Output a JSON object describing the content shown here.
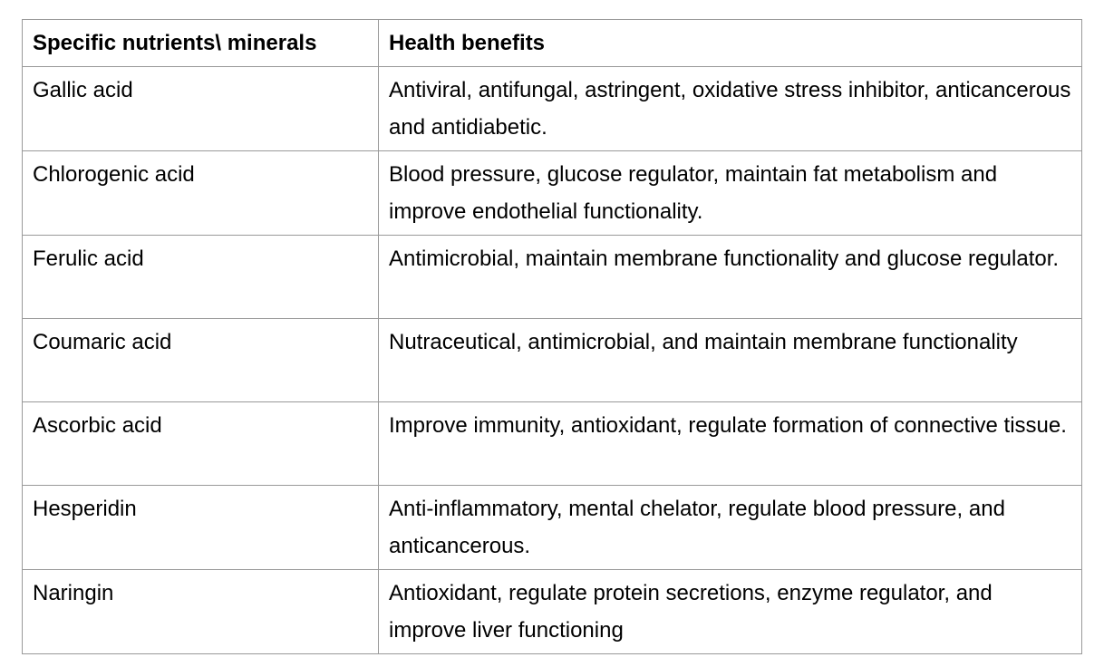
{
  "table": {
    "headers": [
      "Specific nutrients\\ minerals",
      "Health benefits"
    ],
    "rows": [
      {
        "nutrient": "Gallic acid",
        "benefits": "Antiviral, antifungal, astringent, oxidative stress inhibitor, anticancerous and antidiabetic."
      },
      {
        "nutrient": "Chlorogenic acid",
        "benefits": "Blood pressure, glucose regulator, maintain fat metabolism and improve endothelial functionality."
      },
      {
        "nutrient": "Ferulic acid",
        "benefits": "Antimicrobial, maintain membrane functionality and glucose regulator."
      },
      {
        "nutrient": "Coumaric acid",
        "benefits": "Nutraceutical, antimicrobial, and maintain membrane functionality"
      },
      {
        "nutrient": "Ascorbic acid",
        "benefits": "Improve immunity, antioxidant, regulate formation of connective tissue."
      },
      {
        "nutrient": "Hesperidin",
        "benefits": "Anti-inflammatory, mental chelator, regulate blood pressure, and anticancerous."
      },
      {
        "nutrient": "Naringin",
        "benefits": "Antioxidant, regulate protein secretions, enzyme regulator, and improve liver functioning"
      }
    ]
  }
}
